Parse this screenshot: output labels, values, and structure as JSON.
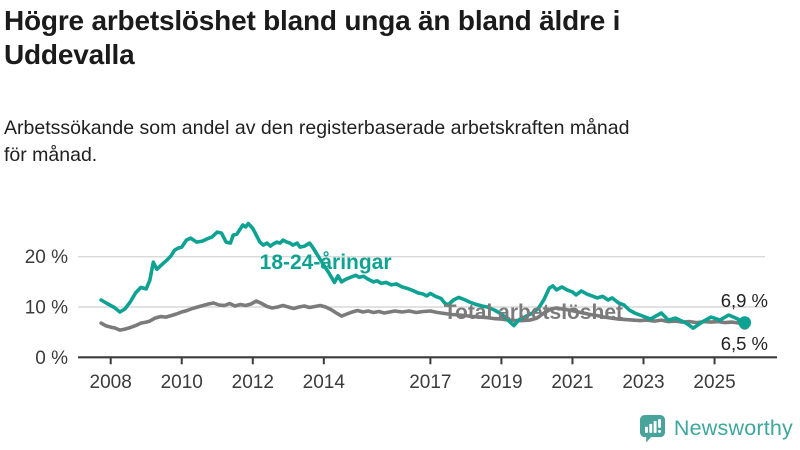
{
  "header": {
    "title_lines": [
      "Högre arbetslöshet bland unga än bland äldre i",
      "Uddevalla"
    ],
    "subtitle_lines": [
      "Arbetssökande som andel av den registerbaserade arbetskraften månad",
      "för månad."
    ]
  },
  "branding": {
    "logo_text": "Newsworthy",
    "icon": "bar-chart-speech-bubble"
  },
  "colors": {
    "youth": "#0ea293",
    "total": "#7b7b7b",
    "grid": "#d9d9d9",
    "axis": "#3b3b3b",
    "tick_text": "#3b3b3b",
    "end_label_text": "#222222",
    "title_text": "#1b1b1b",
    "brand": "#3ea79d"
  },
  "chart_data": {
    "type": "line",
    "title": "Högre arbetslöshet bland unga än bland äldre i Uddevalla",
    "subtitle": "Arbetssökande som andel av den registerbaserade arbetskraften månad för månad.",
    "unit": "%",
    "x_axis": {
      "ticks": [
        2008,
        2010,
        2012,
        2014,
        2017,
        2019,
        2021,
        2023,
        2025
      ],
      "range": [
        2007.73,
        2026.6
      ]
    },
    "y_axis": {
      "ticks": [
        0,
        10,
        20
      ],
      "tick_labels": [
        "0 %",
        "10 %",
        "20 %"
      ],
      "range": [
        0,
        29
      ],
      "grid": true
    },
    "series": [
      {
        "name": "Total arbetslöshet",
        "color": "#7b7b7b",
        "end_value": 6.5,
        "end_label": "6,5 %",
        "points": [
          [
            2007.73,
            6.8
          ],
          [
            2007.85,
            6.3
          ],
          [
            2008.0,
            6.0
          ],
          [
            2008.13,
            5.8
          ],
          [
            2008.26,
            5.4
          ],
          [
            2008.4,
            5.6
          ],
          [
            2008.55,
            5.9
          ],
          [
            2008.7,
            6.3
          ],
          [
            2008.85,
            6.8
          ],
          [
            2009.0,
            7.0
          ],
          [
            2009.1,
            7.2
          ],
          [
            2009.25,
            7.8
          ],
          [
            2009.4,
            8.1
          ],
          [
            2009.55,
            8.0
          ],
          [
            2009.7,
            8.3
          ],
          [
            2009.85,
            8.6
          ],
          [
            2010.0,
            9.0
          ],
          [
            2010.15,
            9.3
          ],
          [
            2010.3,
            9.7
          ],
          [
            2010.45,
            10.0
          ],
          [
            2010.6,
            10.3
          ],
          [
            2010.75,
            10.6
          ],
          [
            2010.9,
            10.8
          ],
          [
            2011.05,
            10.4
          ],
          [
            2011.2,
            10.3
          ],
          [
            2011.35,
            10.7
          ],
          [
            2011.5,
            10.2
          ],
          [
            2011.65,
            10.5
          ],
          [
            2011.8,
            10.3
          ],
          [
            2011.95,
            10.6
          ],
          [
            2012.1,
            11.2
          ],
          [
            2012.25,
            10.7
          ],
          [
            2012.4,
            10.1
          ],
          [
            2012.55,
            9.8
          ],
          [
            2012.7,
            10.0
          ],
          [
            2012.85,
            10.3
          ],
          [
            2013.0,
            10.0
          ],
          [
            2013.15,
            9.7
          ],
          [
            2013.3,
            10.0
          ],
          [
            2013.45,
            10.2
          ],
          [
            2013.6,
            9.9
          ],
          [
            2013.75,
            10.1
          ],
          [
            2013.9,
            10.3
          ],
          [
            2014.05,
            10.0
          ],
          [
            2014.2,
            9.5
          ],
          [
            2014.35,
            8.8
          ],
          [
            2014.5,
            8.2
          ],
          [
            2014.65,
            8.6
          ],
          [
            2014.8,
            9.0
          ],
          [
            2014.95,
            9.3
          ],
          [
            2015.1,
            9.0
          ],
          [
            2015.25,
            9.2
          ],
          [
            2015.4,
            8.9
          ],
          [
            2015.55,
            9.1
          ],
          [
            2015.7,
            8.8
          ],
          [
            2015.85,
            9.0
          ],
          [
            2016.0,
            9.2
          ],
          [
            2016.2,
            9.0
          ],
          [
            2016.4,
            9.2
          ],
          [
            2016.6,
            8.9
          ],
          [
            2016.8,
            9.1
          ],
          [
            2017.0,
            9.2
          ],
          [
            2017.2,
            8.9
          ],
          [
            2017.4,
            8.7
          ],
          [
            2017.6,
            8.5
          ],
          [
            2017.8,
            8.4
          ],
          [
            2018.0,
            8.3
          ],
          [
            2018.2,
            8.1
          ],
          [
            2018.4,
            8.0
          ],
          [
            2018.6,
            7.9
          ],
          [
            2018.8,
            7.7
          ],
          [
            2019.0,
            7.6
          ],
          [
            2019.2,
            7.4
          ],
          [
            2019.4,
            7.3
          ],
          [
            2019.6,
            7.3
          ],
          [
            2019.8,
            7.4
          ],
          [
            2020.0,
            7.8
          ],
          [
            2020.2,
            8.8
          ],
          [
            2020.4,
            9.6
          ],
          [
            2020.55,
            9.8
          ],
          [
            2020.7,
            9.6
          ],
          [
            2020.9,
            9.4
          ],
          [
            2021.1,
            9.1
          ],
          [
            2021.3,
            8.8
          ],
          [
            2021.5,
            8.5
          ],
          [
            2021.7,
            8.3
          ],
          [
            2021.9,
            8.0
          ],
          [
            2022.1,
            7.8
          ],
          [
            2022.3,
            7.6
          ],
          [
            2022.5,
            7.5
          ],
          [
            2022.7,
            7.4
          ],
          [
            2022.9,
            7.3
          ],
          [
            2023.1,
            7.4
          ],
          [
            2023.3,
            7.2
          ],
          [
            2023.5,
            7.4
          ],
          [
            2023.7,
            7.1
          ],
          [
            2023.9,
            7.2
          ],
          [
            2024.1,
            7.0
          ],
          [
            2024.3,
            7.1
          ],
          [
            2024.5,
            6.9
          ],
          [
            2024.7,
            7.1
          ],
          [
            2024.9,
            7.0
          ],
          [
            2025.1,
            7.1
          ],
          [
            2025.3,
            6.9
          ],
          [
            2025.5,
            7.0
          ],
          [
            2025.7,
            6.8
          ],
          [
            2025.85,
            6.5
          ]
        ]
      },
      {
        "name": "18-24-åringar",
        "color": "#0ea293",
        "end_value": 6.9,
        "end_label": "6,9 %",
        "points": [
          [
            2007.73,
            11.4
          ],
          [
            2007.85,
            10.9
          ],
          [
            2007.95,
            10.5
          ],
          [
            2008.1,
            9.9
          ],
          [
            2008.26,
            9.0
          ],
          [
            2008.4,
            9.6
          ],
          [
            2008.55,
            11.0
          ],
          [
            2008.7,
            12.8
          ],
          [
            2008.85,
            13.9
          ],
          [
            2009.0,
            13.6
          ],
          [
            2009.1,
            15.3
          ],
          [
            2009.2,
            18.9
          ],
          [
            2009.3,
            17.5
          ],
          [
            2009.42,
            18.3
          ],
          [
            2009.58,
            19.3
          ],
          [
            2009.7,
            20.2
          ],
          [
            2009.8,
            21.3
          ],
          [
            2009.9,
            21.7
          ],
          [
            2010.0,
            21.9
          ],
          [
            2010.13,
            23.3
          ],
          [
            2010.25,
            23.7
          ],
          [
            2010.42,
            22.9
          ],
          [
            2010.58,
            23.1
          ],
          [
            2010.7,
            23.5
          ],
          [
            2010.85,
            23.9
          ],
          [
            2011.0,
            24.9
          ],
          [
            2011.12,
            24.7
          ],
          [
            2011.25,
            22.9
          ],
          [
            2011.37,
            22.7
          ],
          [
            2011.45,
            24.3
          ],
          [
            2011.55,
            24.5
          ],
          [
            2011.63,
            25.3
          ],
          [
            2011.72,
            26.3
          ],
          [
            2011.8,
            25.9
          ],
          [
            2011.87,
            26.6
          ],
          [
            2011.94,
            26.1
          ],
          [
            2012.0,
            25.6
          ],
          [
            2012.1,
            24.3
          ],
          [
            2012.2,
            22.9
          ],
          [
            2012.3,
            22.3
          ],
          [
            2012.4,
            22.7
          ],
          [
            2012.5,
            22.1
          ],
          [
            2012.57,
            22.5
          ],
          [
            2012.68,
            22.9
          ],
          [
            2012.77,
            22.7
          ],
          [
            2012.85,
            23.3
          ],
          [
            2012.96,
            22.9
          ],
          [
            2013.05,
            22.7
          ],
          [
            2013.13,
            22.3
          ],
          [
            2013.25,
            22.7
          ],
          [
            2013.33,
            21.9
          ],
          [
            2013.46,
            22.1
          ],
          [
            2013.6,
            22.7
          ],
          [
            2013.7,
            21.7
          ],
          [
            2013.85,
            20.0
          ],
          [
            2014.0,
            18.3
          ],
          [
            2014.15,
            16.7
          ],
          [
            2014.3,
            14.9
          ],
          [
            2014.4,
            16.2
          ],
          [
            2014.5,
            15.0
          ],
          [
            2014.62,
            15.5
          ],
          [
            2014.75,
            15.9
          ],
          [
            2014.9,
            16.3
          ],
          [
            2015.0,
            15.9
          ],
          [
            2015.12,
            16.1
          ],
          [
            2015.25,
            15.5
          ],
          [
            2015.4,
            15.0
          ],
          [
            2015.5,
            15.2
          ],
          [
            2015.62,
            14.7
          ],
          [
            2015.75,
            14.9
          ],
          [
            2015.9,
            14.4
          ],
          [
            2016.05,
            14.6
          ],
          [
            2016.2,
            14.0
          ],
          [
            2016.35,
            13.7
          ],
          [
            2016.5,
            13.3
          ],
          [
            2016.65,
            12.8
          ],
          [
            2016.78,
            12.6
          ],
          [
            2016.9,
            12.2
          ],
          [
            2017.0,
            12.7
          ],
          [
            2017.15,
            12.1
          ],
          [
            2017.3,
            11.7
          ],
          [
            2017.4,
            10.8
          ],
          [
            2017.5,
            10.4
          ],
          [
            2017.65,
            11.4
          ],
          [
            2017.8,
            11.9
          ],
          [
            2017.95,
            11.5
          ],
          [
            2018.1,
            11.0
          ],
          [
            2018.25,
            10.6
          ],
          [
            2018.45,
            10.2
          ],
          [
            2018.6,
            10.0
          ],
          [
            2018.8,
            9.4
          ],
          [
            2019.0,
            8.6
          ],
          [
            2019.2,
            7.3
          ],
          [
            2019.35,
            6.3
          ],
          [
            2019.5,
            7.5
          ],
          [
            2019.7,
            8.2
          ],
          [
            2019.9,
            8.9
          ],
          [
            2020.05,
            9.8
          ],
          [
            2020.2,
            11.5
          ],
          [
            2020.35,
            13.8
          ],
          [
            2020.45,
            14.2
          ],
          [
            2020.55,
            13.4
          ],
          [
            2020.7,
            14.0
          ],
          [
            2020.85,
            13.4
          ],
          [
            2021.0,
            13.0
          ],
          [
            2021.1,
            12.4
          ],
          [
            2021.25,
            13.2
          ],
          [
            2021.4,
            12.6
          ],
          [
            2021.55,
            12.2
          ],
          [
            2021.7,
            11.8
          ],
          [
            2021.85,
            12.1
          ],
          [
            2022.0,
            11.4
          ],
          [
            2022.12,
            11.8
          ],
          [
            2022.3,
            10.8
          ],
          [
            2022.45,
            10.4
          ],
          [
            2022.6,
            9.4
          ],
          [
            2022.75,
            8.8
          ],
          [
            2022.9,
            8.4
          ],
          [
            2023.2,
            7.6
          ],
          [
            2023.5,
            8.8
          ],
          [
            2023.7,
            7.4
          ],
          [
            2023.9,
            7.8
          ],
          [
            2024.2,
            6.8
          ],
          [
            2024.4,
            5.8
          ],
          [
            2024.65,
            7.0
          ],
          [
            2024.9,
            8.0
          ],
          [
            2025.15,
            7.4
          ],
          [
            2025.4,
            8.4
          ],
          [
            2025.6,
            7.8
          ],
          [
            2025.85,
            6.9
          ]
        ]
      }
    ],
    "series_labels": [
      {
        "text": "18-24-åringar",
        "x": 2014.05,
        "y": 18.9,
        "color": "#0ea293"
      },
      {
        "text": "Total arbetslöshet",
        "x": 2019.9,
        "y": 9.0,
        "color": "#7b7b7b"
      }
    ],
    "end_labels": [
      {
        "text": "6,9 %",
        "y": 11.2
      },
      {
        "text": "6,5 %",
        "y": 2.65
      }
    ],
    "legend_position": "inline-labels",
    "grid": true
  }
}
